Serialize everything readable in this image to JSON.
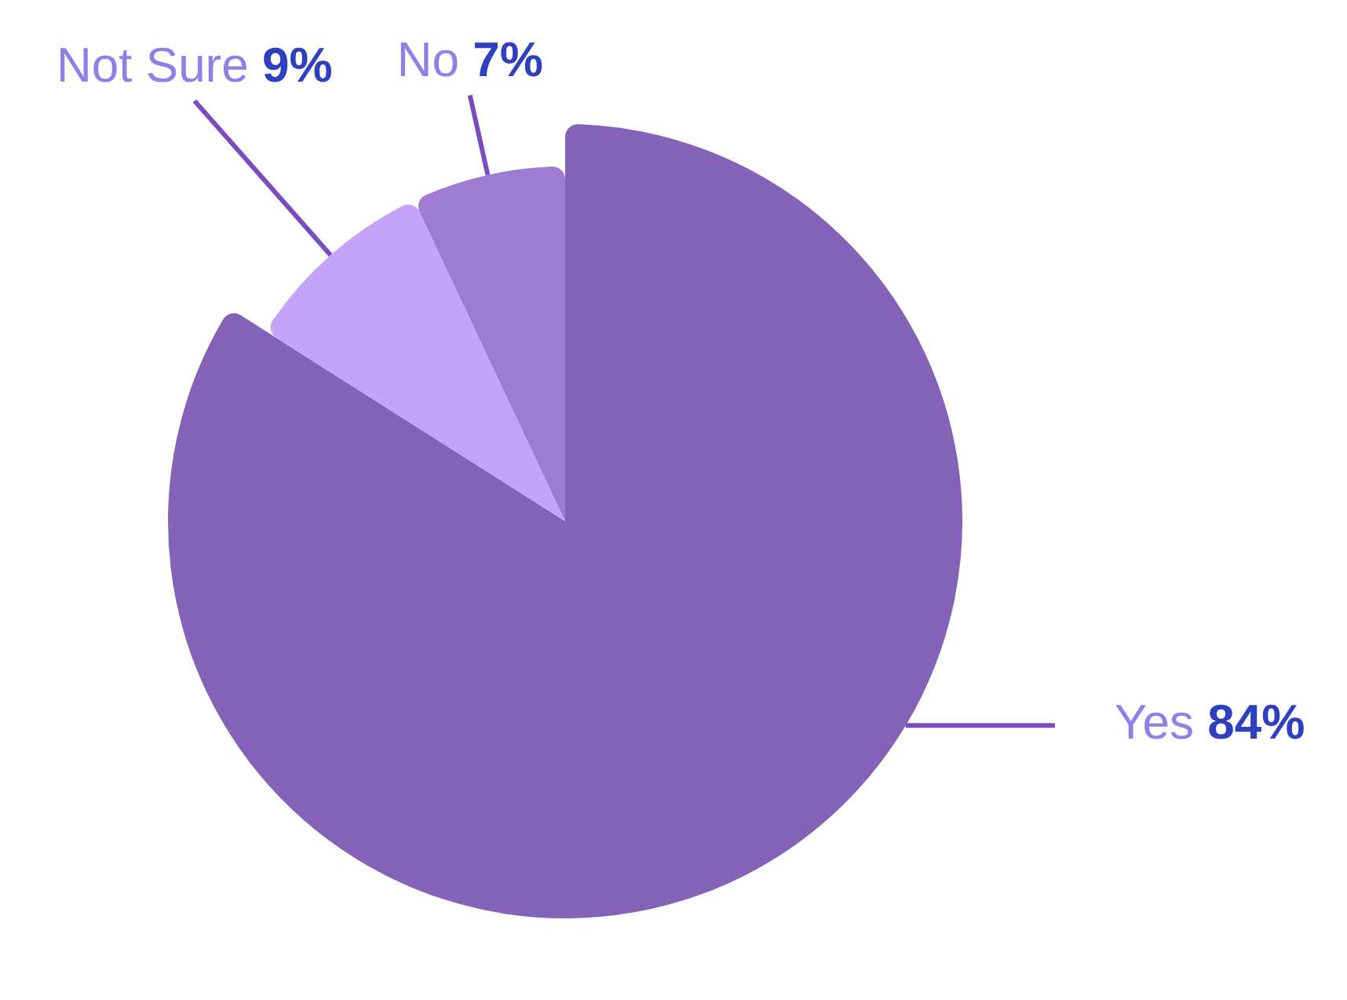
{
  "chart_data": {
    "type": "pie",
    "categories": [
      "Yes",
      "Not Sure",
      "No"
    ],
    "values": [
      84,
      9,
      7
    ],
    "colors": [
      "#8462b7",
      "#c4a3f8",
      "#9d7bd0"
    ],
    "value_labels": [
      "84%",
      "9%",
      "7%"
    ],
    "legend": false
  }
}
